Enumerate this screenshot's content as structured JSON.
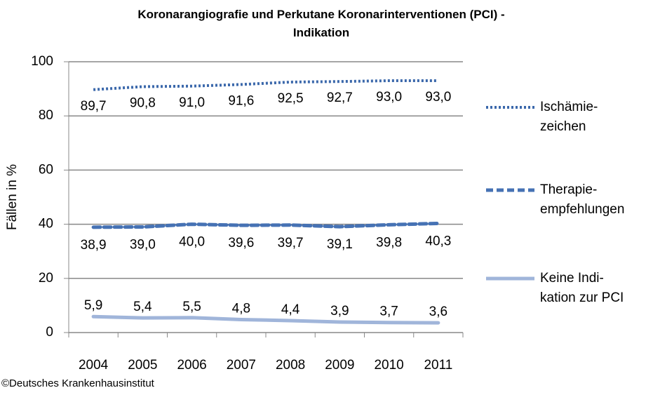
{
  "chart_data": {
    "type": "line",
    "title": "Koronarangiografie  und Perkutane Koronarinterventionen (PCI) -\nIndikation",
    "y_label": "Fällen in %",
    "source": "©Deutsches Krankenhausinstitut",
    "categories": [
      "2004",
      "2005",
      "2006",
      "2007",
      "2008",
      "2009",
      "2010",
      "2011"
    ],
    "ylim": [
      0,
      100
    ],
    "yticks": [
      0,
      20,
      40,
      60,
      80,
      100
    ],
    "grid": true,
    "legend": "right",
    "series": [
      {
        "name": "Ischämie-\nzeichen",
        "color": "#3b68ab",
        "dash": "dotted",
        "values": [
          89.7,
          90.8,
          91.0,
          91.6,
          92.5,
          92.7,
          93.0,
          93.0
        ],
        "value_labels": [
          "89,7",
          "90,8",
          "91,0",
          "91,6",
          "92,5",
          "92,7",
          "93,0",
          "93,0"
        ]
      },
      {
        "name": "Therapie-\nempfehlungen",
        "color": "#4672b4",
        "dash": "dashed",
        "values": [
          38.9,
          39.0,
          40.0,
          39.6,
          39.7,
          39.1,
          39.8,
          40.3
        ],
        "value_labels": [
          "38,9",
          "39,0",
          "40,0",
          "39,6",
          "39,7",
          "39,1",
          "39,8",
          "40,3"
        ]
      },
      {
        "name": "Keine Indi-\nkation zur PCI",
        "color": "#a0b5da",
        "dash": "solid",
        "values": [
          5.9,
          5.4,
          5.5,
          4.8,
          4.4,
          3.9,
          3.7,
          3.6
        ],
        "value_labels": [
          "5,9",
          "5,4",
          "5,5",
          "4,8",
          "4,4",
          "3,9",
          "3,7",
          "3,6"
        ]
      }
    ]
  }
}
